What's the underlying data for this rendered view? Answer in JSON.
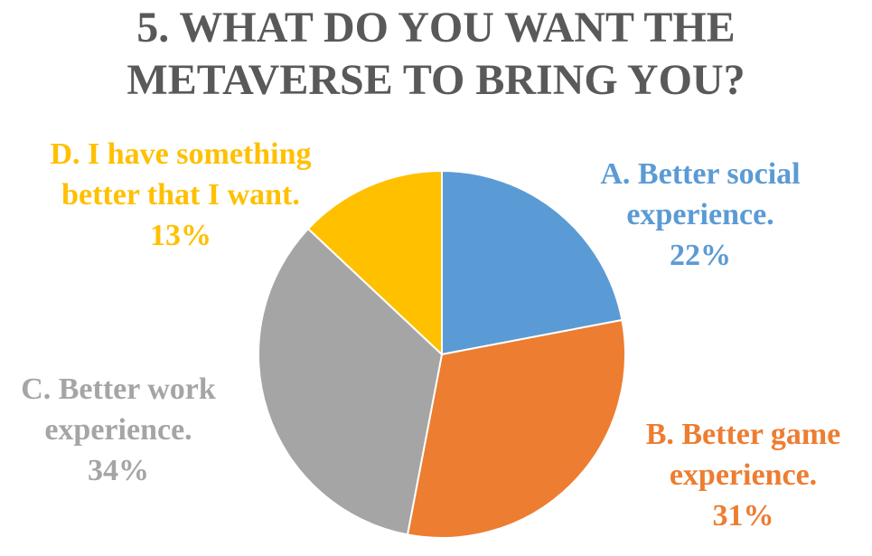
{
  "title_lines": [
    "5. WHAT DO YOU WANT THE",
    "METAVERSE TO BRING YOU?"
  ],
  "chart_data": {
    "type": "pie",
    "title": "5. WHAT DO YOU WANT THE METAVERSE TO BRING YOU?",
    "slices": [
      {
        "label": "A. Better social experience.",
        "label_lines": [
          "A. Better social",
          "experience."
        ],
        "value": 22,
        "value_label": "22%",
        "color": "#5B9BD5"
      },
      {
        "label": "B. Better game experience.",
        "label_lines": [
          "B. Better game",
          "experience."
        ],
        "value": 31,
        "value_label": "31%",
        "color": "#ED7D31"
      },
      {
        "label": "C. Better work experience.",
        "label_lines": [
          "C. Better work",
          "experience."
        ],
        "value": 34,
        "value_label": "34%",
        "color": "#A5A5A5"
      },
      {
        "label": "D. I have something better that I want.",
        "label_lines": [
          "D. I have something",
          "better that I want."
        ],
        "value": 13,
        "value_label": "13%",
        "color": "#FFC000"
      }
    ],
    "legend": "none",
    "data_labels": "outside"
  }
}
